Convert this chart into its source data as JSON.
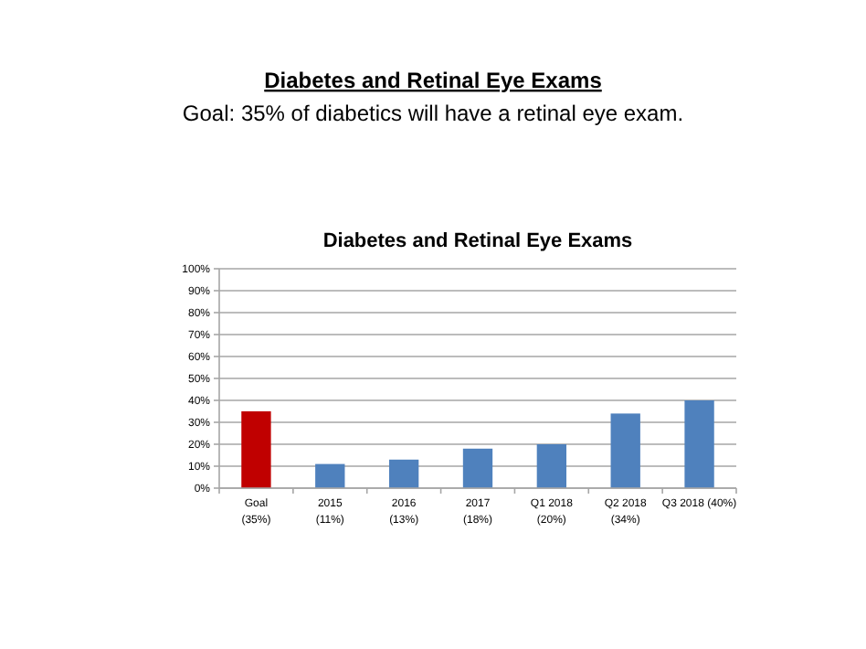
{
  "chart_data": {
    "type": "bar",
    "title": "Diabetes and Retinal Eye Exams",
    "subtitle": "Goal: 35% of diabetics will have a retinal eye exam.",
    "annotations": [
      "Diabetes and Retinal Eye Exams"
    ],
    "categories": [
      "Goal\n(35%)",
      "2015\n(11%)",
      "2016\n(13%)",
      "2017\n(18%)",
      "Q1 2018\n(20%)",
      "Q2 2018\n(34%)",
      "Q3 2018 (40%)"
    ],
    "values": [
      35,
      11,
      13,
      18,
      20,
      34,
      40
    ],
    "colors": [
      "#c00000",
      "#4f81bd",
      "#4f81bd",
      "#4f81bd",
      "#4f81bd",
      "#4f81bd",
      "#4f81bd"
    ],
    "ylim": [
      0,
      100
    ],
    "yticks": [
      {
        "value": 0,
        "label": "0%"
      },
      {
        "value": 10,
        "label": "10%"
      },
      {
        "value": 20,
        "label": "20%"
      },
      {
        "value": 30,
        "label": "30%"
      },
      {
        "value": 40,
        "label": "40%"
      },
      {
        "value": 50,
        "label": "50%"
      },
      {
        "value": 60,
        "label": "60%"
      },
      {
        "value": 70,
        "label": "70%"
      },
      {
        "value": 80,
        "label": "80%"
      },
      {
        "value": 90,
        "label": "90%"
      },
      {
        "value": 100,
        "label": "100%"
      }
    ],
    "grid": "y"
  }
}
